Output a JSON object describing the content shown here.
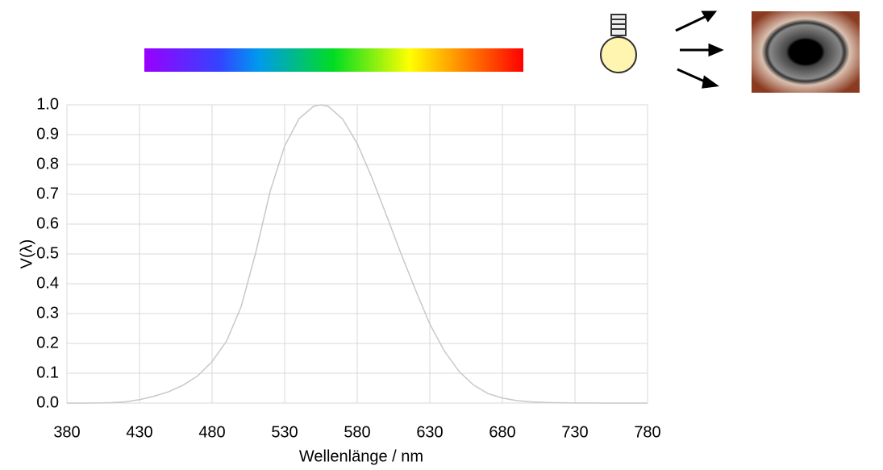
{
  "chart_data": {
    "type": "line",
    "xlabel": "Wellenlänge / nm",
    "ylabel": "V(λ)",
    "x": [
      380,
      390,
      400,
      410,
      420,
      430,
      440,
      450,
      460,
      470,
      480,
      490,
      500,
      510,
      520,
      530,
      540,
      550,
      555,
      560,
      570,
      580,
      590,
      600,
      610,
      620,
      630,
      640,
      650,
      660,
      670,
      680,
      690,
      700,
      710,
      720,
      730,
      740,
      750,
      760,
      770,
      780
    ],
    "values": [
      4e-05,
      0.00012,
      0.0004,
      0.0012,
      0.004,
      0.0116,
      0.023,
      0.038,
      0.06,
      0.091,
      0.139,
      0.208,
      0.323,
      0.503,
      0.71,
      0.862,
      0.954,
      0.995,
      1.0,
      0.995,
      0.952,
      0.87,
      0.757,
      0.631,
      0.503,
      0.381,
      0.265,
      0.175,
      0.107,
      0.061,
      0.032,
      0.017,
      0.0082,
      0.0041,
      0.0021,
      0.001,
      0.0005,
      0.00025,
      0.00012,
      6e-05,
      3e-05,
      1.5e-05
    ],
    "color": "#c8c8c8",
    "xlim": [
      380,
      780
    ],
    "xticks": [
      380,
      430,
      480,
      530,
      580,
      630,
      680,
      730,
      780
    ],
    "ylim": [
      0,
      1
    ],
    "yticks": [
      {
        "value": 0,
        "label": "0.0"
      },
      0.1,
      0.2,
      0.3,
      0.4,
      0.5,
      0.6,
      0.7,
      0.8,
      0.9,
      {
        "value": 1,
        "label": "1.0"
      }
    ],
    "grid": true
  }
}
